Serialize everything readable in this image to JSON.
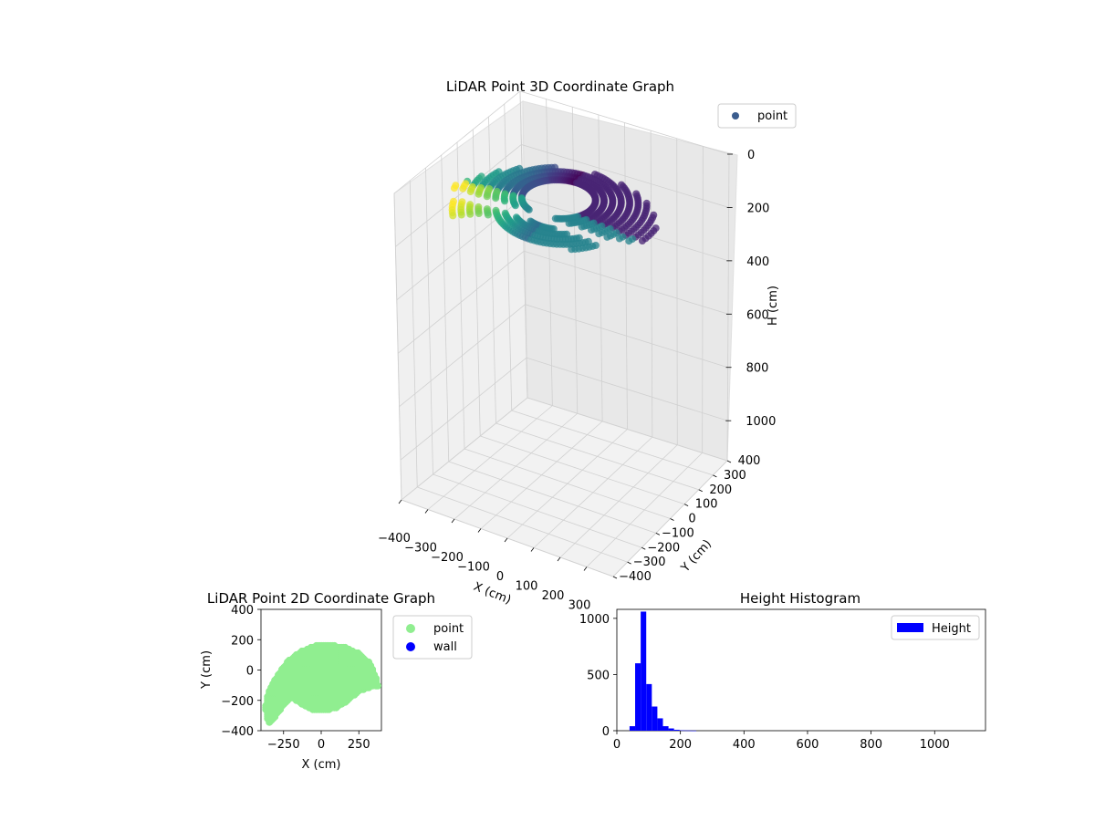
{
  "chart_data": [
    {
      "type": "scatter3d",
      "title": "LiDAR Point 3D Coordinate Graph",
      "xlabel": "X (cm)",
      "ylabel": "Y (cm)",
      "zlabel": "H (cm)",
      "xlim": [
        -400,
        400
      ],
      "ylim": [
        -400,
        400
      ],
      "zlim": [
        0,
        1150
      ],
      "z_inverted": true,
      "xticks": [
        "−400",
        "−300",
        "−200",
        "−100",
        "0",
        "100",
        "200",
        "300"
      ],
      "yticks": [
        "−400",
        "−300",
        "−200",
        "−100",
        "0",
        "100",
        "200",
        "300",
        "400"
      ],
      "zticks": [
        "0",
        "200",
        "400",
        "600",
        "800",
        "1000"
      ],
      "colormap": "viridis",
      "grid": true,
      "legend": {
        "placement": "upper-right",
        "entries": [
          {
            "label": "point",
            "color": "#3b5d8e"
          }
        ]
      },
      "series": [
        {
          "name": "point",
          "shape": "dome-arc",
          "description_values": {
            "arc_center_x": 0,
            "arc_center_y": 0,
            "arc_radius_xy": 340,
            "height_range_cm": [
              60,
              220
            ]
          },
          "sample_points": [
            {
              "x": -360,
              "y": -300,
              "h": 200
            },
            {
              "x": -340,
              "y": -200,
              "h": 180
            },
            {
              "x": -300,
              "y": -100,
              "h": 150
            },
            {
              "x": -250,
              "y": 0,
              "h": 120
            },
            {
              "x": -150,
              "y": 100,
              "h": 90
            },
            {
              "x": 0,
              "y": 160,
              "h": 70
            },
            {
              "x": 150,
              "y": 120,
              "h": 80
            },
            {
              "x": 280,
              "y": 20,
              "h": 110
            },
            {
              "x": 340,
              "y": -100,
              "h": 150
            },
            {
              "x": 340,
              "y": -160,
              "h": 190
            },
            {
              "x": 0,
              "y": -200,
              "h": 160
            },
            {
              "x": -100,
              "y": -250,
              "h": 180
            }
          ]
        }
      ]
    },
    {
      "type": "scatter",
      "title": "LiDAR Point 2D Coordinate Graph",
      "xlabel": "X (cm)",
      "ylabel": "Y (cm)",
      "xlim": [
        -400,
        400
      ],
      "ylim": [
        -400,
        400
      ],
      "xticks": [
        "−250",
        "0",
        "250"
      ],
      "yticks": [
        "−400",
        "−200",
        "0",
        "200",
        "400"
      ],
      "xtick_values": [
        -250,
        0,
        250
      ],
      "ytick_values": [
        -400,
        -200,
        0,
        200,
        400
      ],
      "legend": {
        "placement": "outside-right",
        "entries": [
          {
            "label": "point",
            "color": "#90ee90"
          },
          {
            "label": "wall",
            "color": "#0000ff"
          }
        ]
      },
      "series": [
        {
          "name": "point",
          "color": "#90ee90",
          "boundary": [
            [
              -360,
              -320
            ],
            [
              -370,
              -250
            ],
            [
              -360,
              -180
            ],
            [
              -330,
              -100
            ],
            [
              -280,
              -20
            ],
            [
              -220,
              60
            ],
            [
              -140,
              120
            ],
            [
              -40,
              160
            ],
            [
              60,
              165
            ],
            [
              160,
              150
            ],
            [
              250,
              110
            ],
            [
              320,
              50
            ],
            [
              360,
              -40
            ],
            [
              380,
              -110
            ],
            [
              350,
              -100
            ],
            [
              320,
              -120
            ],
            [
              250,
              -140
            ],
            [
              180,
              -200
            ],
            [
              100,
              -250
            ],
            [
              20,
              -270
            ],
            [
              -60,
              -260
            ],
            [
              -140,
              -220
            ],
            [
              -190,
              -180
            ],
            [
              -240,
              -220
            ],
            [
              -300,
              -300
            ],
            [
              -340,
              -350
            ]
          ]
        },
        {
          "name": "wall",
          "color": "#0000ff",
          "points": []
        }
      ]
    },
    {
      "type": "histogram",
      "title": "Height Histogram",
      "xlim": [
        0,
        1160
      ],
      "ylim": [
        0,
        1080
      ],
      "xticks": [
        "0",
        "200",
        "400",
        "600",
        "800",
        "1000"
      ],
      "xtick_values": [
        0,
        200,
        400,
        600,
        800,
        1000
      ],
      "yticks": [
        "0",
        "500",
        "1000"
      ],
      "ytick_values": [
        0,
        500,
        1000
      ],
      "bin_width": 17.5,
      "bins_start": 40,
      "counts": [
        40,
        600,
        1060,
        415,
        215,
        110,
        40,
        20,
        8,
        3,
        2,
        1
      ],
      "color": "#0000ff",
      "legend": {
        "placement": "upper-right",
        "entries": [
          {
            "label": "Height",
            "color": "#0000ff"
          }
        ]
      }
    }
  ]
}
